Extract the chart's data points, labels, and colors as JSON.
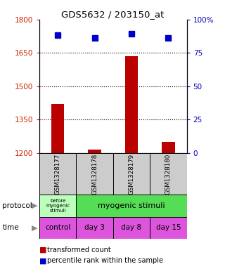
{
  "title": "GDS5632 / 203150_at",
  "samples": [
    "GSM1328177",
    "GSM1328178",
    "GSM1328179",
    "GSM1328180"
  ],
  "bar_values": [
    1420,
    1215,
    1635,
    1250
  ],
  "bar_base": 1200,
  "dot_values": [
    88,
    86,
    89,
    86
  ],
  "ylim_left": [
    1200,
    1800
  ],
  "ylim_right": [
    0,
    100
  ],
  "yticks_left": [
    1200,
    1350,
    1500,
    1650,
    1800
  ],
  "yticks_right": [
    0,
    25,
    50,
    75,
    100
  ],
  "ytick_labels_right": [
    "0",
    "25",
    "50",
    "75",
    "100%"
  ],
  "bar_color": "#bb0000",
  "dot_color": "#0000cc",
  "protocol_color_before": "#bbffbb",
  "protocol_color_myogenic": "#55dd55",
  "time_color": "#dd55dd",
  "sample_bg": "#cccccc",
  "label_color_left": "#cc2200",
  "label_color_right": "#0000bb",
  "x_positions": [
    0.5,
    1.5,
    2.5,
    3.5
  ],
  "bar_width": 0.35,
  "dot_size": 6
}
